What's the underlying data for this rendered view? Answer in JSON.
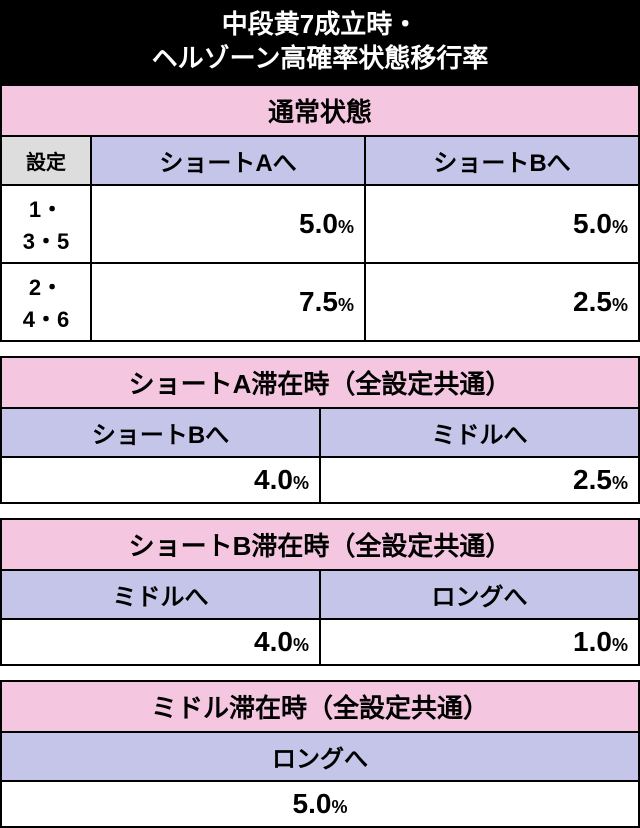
{
  "title_line1": "中段黄7成立時・",
  "title_line2": "ヘルゾーン高確率状態移行率",
  "section1": {
    "header": "通常状態",
    "settei_label": "設定",
    "col1": "ショートAへ",
    "col2": "ショートBへ",
    "rows": [
      {
        "label": "1・3・5",
        "v1": "5.0",
        "v2": "5.0"
      },
      {
        "label": "2・4・6",
        "v1": "7.5",
        "v2": "2.5"
      }
    ]
  },
  "section2": {
    "header": "ショートA滞在時（全設定共通）",
    "col1": "ショートBへ",
    "col2": "ミドルへ",
    "v1": "4.0",
    "v2": "2.5"
  },
  "section3": {
    "header": "ショートB滞在時（全設定共通）",
    "col1": "ミドルへ",
    "col2": "ロングへ",
    "v1": "4.0",
    "v2": "1.0"
  },
  "section4": {
    "header": "ミドル滞在時（全設定共通）",
    "col1": "ロングへ",
    "v1": "5.0"
  },
  "pct": "%",
  "colors": {
    "title_bg": "#000000",
    "title_fg": "#ffffff",
    "section_bg": "#f5c6e0",
    "colhead_bg": "#c5c5ea",
    "settei_bg": "#dddddd",
    "border": "#000000",
    "cell_bg": "#ffffff"
  }
}
